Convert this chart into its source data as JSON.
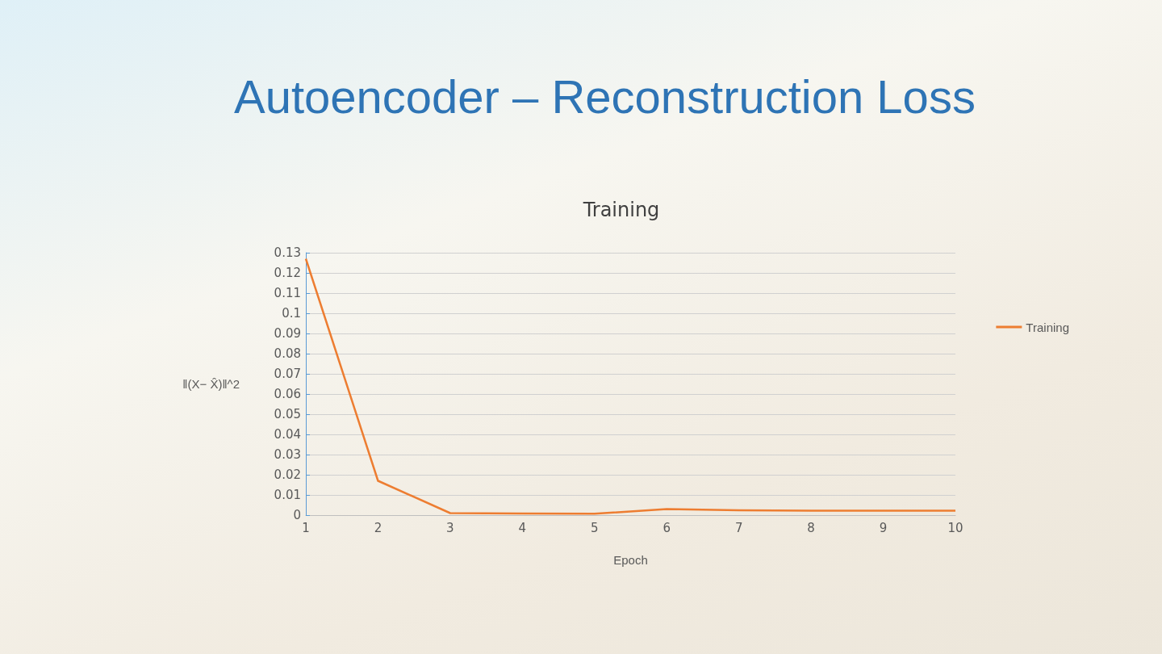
{
  "chart_data": {
    "type": "line",
    "title": "Autoencoder – Reconstruction Loss",
    "subtitle": "Training",
    "xlabel": "Epoch",
    "ylabel": "‖(X− X̂)‖^2",
    "x": [
      1,
      2,
      3,
      4,
      5,
      6,
      7,
      8,
      9,
      10
    ],
    "series": [
      {
        "name": "Training",
        "color": "#ed7d31",
        "values": [
          0.127,
          0.017,
          0.001,
          0.0008,
          0.0007,
          0.003,
          0.0024,
          0.0022,
          0.0022,
          0.0022
        ]
      }
    ],
    "xlim": [
      1,
      10
    ],
    "xticks": [
      1,
      2,
      3,
      4,
      5,
      6,
      7,
      8,
      9,
      10
    ],
    "ylim": [
      0,
      0.13
    ],
    "yticks": [
      0,
      0.01,
      0.02,
      0.03,
      0.04,
      0.05,
      0.06,
      0.07,
      0.08,
      0.09,
      0.1,
      0.11,
      0.12,
      0.13
    ],
    "grid": "y",
    "legend": "right",
    "marker": "none",
    "line_style": "solid"
  }
}
